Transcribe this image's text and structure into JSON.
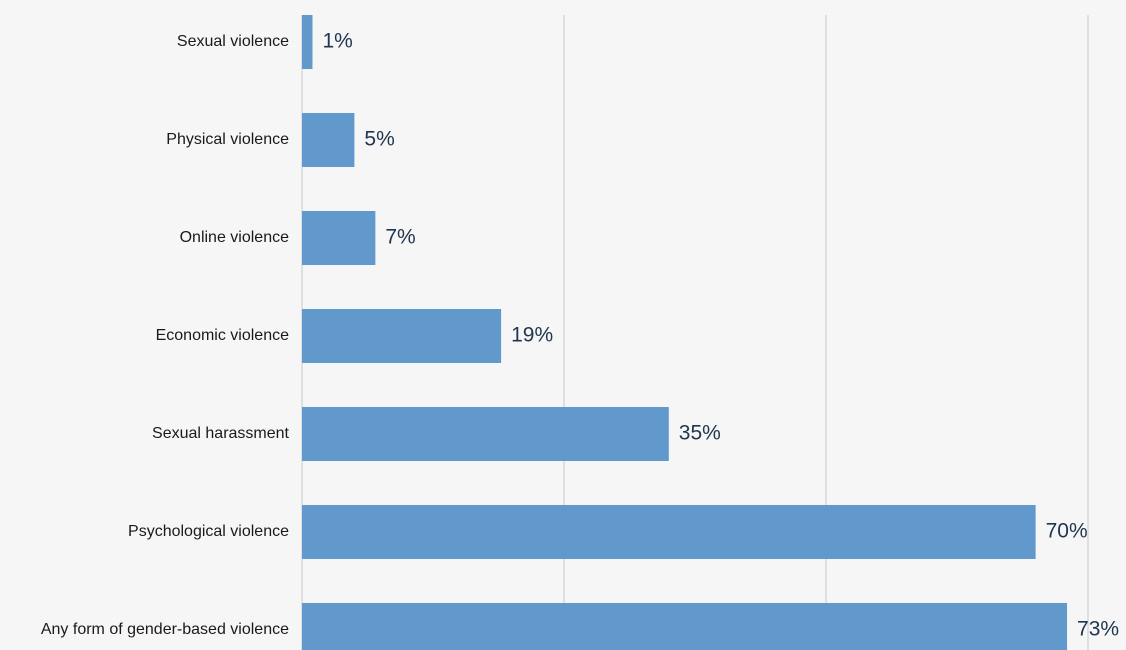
{
  "chart_data": {
    "type": "bar",
    "orientation": "horizontal",
    "categories": [
      "Sexual violence",
      "Physical violence",
      "Online violence",
      "Economic violence",
      "Sexual harassment",
      "Psychological violence",
      "Any form of gender-based violence"
    ],
    "values": [
      1,
      5,
      7,
      19,
      35,
      70,
      73
    ],
    "value_labels": [
      "1%",
      "5%",
      "7%",
      "19%",
      "35%",
      "70%",
      "73%"
    ],
    "xlim": [
      0,
      75
    ],
    "gridlines": [
      0,
      25,
      50,
      75
    ],
    "grid": true,
    "colors": {
      "bar": "#6199cd",
      "grid": "#c8c8c8",
      "background": "#f6f6f6",
      "value_text": "#1f3550"
    }
  }
}
